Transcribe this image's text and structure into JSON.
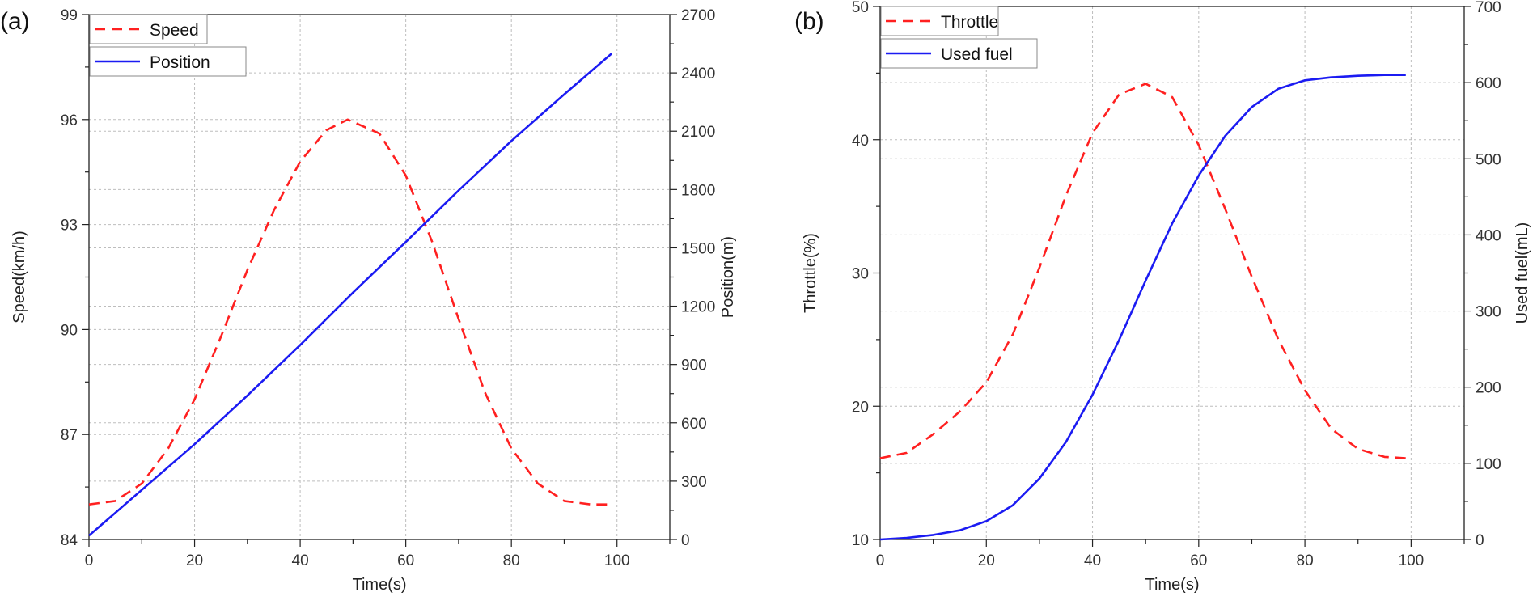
{
  "colors": {
    "speed": "#ff2020",
    "position": "#1b1bf2",
    "throttle": "#ff2020",
    "used_fuel": "#1b1bf2"
  },
  "chart_data": [
    {
      "panel": "(a)",
      "type": "line",
      "xlabel": "Time(s)",
      "ylabel": "Speed(km/h)",
      "y2label": "Position(m)",
      "xlim": [
        0,
        110
      ],
      "xticks": [
        0,
        20,
        40,
        60,
        80,
        100
      ],
      "ylim": [
        84,
        99
      ],
      "yticks": [
        84,
        87,
        90,
        93,
        96,
        99
      ],
      "y2lim": [
        0,
        2700
      ],
      "y2ticks": [
        0,
        300,
        600,
        900,
        1200,
        1500,
        1800,
        2100,
        2400,
        2700
      ],
      "grid": true,
      "legend_position": "top-left",
      "series": [
        {
          "name": "Speed",
          "axis": "left",
          "style": "dashed",
          "color_key": "speed",
          "x": [
            0,
            5,
            10,
            15,
            20,
            25,
            30,
            35,
            40,
            45,
            49,
            55,
            60,
            65,
            70,
            75,
            80,
            85,
            90,
            95,
            99
          ],
          "y": [
            85.0,
            85.1,
            85.6,
            86.6,
            88.0,
            89.8,
            91.7,
            93.4,
            94.8,
            95.7,
            96.0,
            95.6,
            94.4,
            92.5,
            90.3,
            88.2,
            86.6,
            85.6,
            85.1,
            85.0,
            85.0
          ]
        },
        {
          "name": "Position",
          "axis": "right",
          "style": "solid",
          "color_key": "position",
          "x": [
            0,
            10,
            20,
            30,
            40,
            50,
            60,
            70,
            80,
            90,
            99
          ],
          "y": [
            20,
            255,
            490,
            740,
            1000,
            1270,
            1530,
            1795,
            2050,
            2290,
            2500
          ]
        }
      ]
    },
    {
      "panel": "(b)",
      "type": "line",
      "xlabel": "Time(s)",
      "ylabel": "Throttle(%)",
      "y2label": "Used fuel(mL)",
      "xlim": [
        0,
        110
      ],
      "xticks": [
        0,
        20,
        40,
        60,
        80,
        100
      ],
      "ylim": [
        10,
        50
      ],
      "yticks": [
        10,
        20,
        30,
        40,
        50
      ],
      "y2lim": [
        0,
        700
      ],
      "y2ticks": [
        0,
        100,
        200,
        300,
        400,
        500,
        600,
        700
      ],
      "grid": true,
      "legend_position": "top-left",
      "series": [
        {
          "name": "Throttle",
          "axis": "left",
          "style": "dashed",
          "color_key": "throttle",
          "x": [
            0,
            5,
            10,
            15,
            20,
            25,
            30,
            35,
            40,
            45,
            50,
            55,
            60,
            65,
            70,
            75,
            80,
            85,
            90,
            95,
            99
          ],
          "y": [
            16.1,
            16.5,
            17.9,
            19.6,
            21.8,
            25.4,
            30.4,
            35.8,
            40.5,
            43.4,
            44.2,
            43.2,
            39.6,
            34.8,
            29.7,
            25.0,
            21.2,
            18.3,
            16.8,
            16.2,
            16.1
          ]
        },
        {
          "name": "Used fuel",
          "axis": "right",
          "style": "solid",
          "color_key": "used_fuel",
          "x": [
            0,
            5,
            10,
            15,
            20,
            25,
            30,
            35,
            40,
            45,
            50,
            55,
            60,
            65,
            70,
            75,
            80,
            85,
            90,
            95,
            99
          ],
          "y": [
            0,
            2,
            6,
            12,
            24,
            45,
            80,
            128,
            190,
            262,
            340,
            415,
            478,
            530,
            568,
            592,
            603,
            607,
            609,
            610,
            610
          ]
        }
      ]
    }
  ]
}
